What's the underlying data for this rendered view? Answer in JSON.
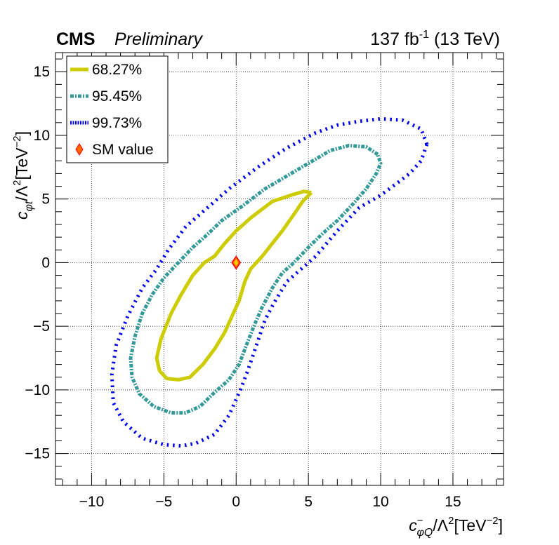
{
  "chart_data": {
    "type": "contour",
    "experiment": "CMS",
    "status": "Preliminary",
    "lumi_label": "137 fb",
    "lumi_sup": "-1",
    "energy_label": " (13 TeV)",
    "xlabel": {
      "main": "c",
      "sup": "−",
      "sub": "φQ",
      "rest": "/Λ",
      "sup2": "2",
      "unit": "[TeV",
      "unit_sup": "−2",
      "close": "]"
    },
    "ylabel": {
      "main": "c",
      "sub": "φt",
      "rest": "/Λ",
      "sup2": "2",
      "unit": "[TeV",
      "unit_sup": "−2",
      "close": "]"
    },
    "xlim": [
      -12.5,
      18.5
    ],
    "ylim": [
      -17.5,
      16.5
    ],
    "xticks": [
      -10,
      -5,
      0,
      5,
      10,
      15
    ],
    "yticks": [
      -15,
      -10,
      -5,
      0,
      5,
      10,
      15
    ],
    "xtick_labels": [
      "−10",
      "−5",
      "0",
      "5",
      "10",
      "15"
    ],
    "ytick_labels": [
      "−15",
      "−10",
      "−5",
      "0",
      "5",
      "10",
      "15"
    ],
    "grid": true,
    "legend_position": "top-left",
    "series": [
      {
        "name": "68.27%",
        "color": "#cccc00",
        "style": "solid",
        "points": [
          [
            5.2,
            5.5
          ],
          [
            4.7,
            5.6
          ],
          [
            3.8,
            5.3
          ],
          [
            2.5,
            4.8
          ],
          [
            1.8,
            4.2
          ],
          [
            1.0,
            3.5
          ],
          [
            0.0,
            2.5
          ],
          [
            -0.8,
            1.5
          ],
          [
            -1.5,
            0.5
          ],
          [
            -2.2,
            0.0
          ],
          [
            -3.0,
            -1.0
          ],
          [
            -3.8,
            -2.5
          ],
          [
            -4.5,
            -4.0
          ],
          [
            -5.2,
            -6.0
          ],
          [
            -5.5,
            -7.5
          ],
          [
            -5.3,
            -8.5
          ],
          [
            -4.8,
            -9.1
          ],
          [
            -4.0,
            -9.2
          ],
          [
            -3.2,
            -9.0
          ],
          [
            -2.3,
            -8.0
          ],
          [
            -1.5,
            -6.8
          ],
          [
            -0.8,
            -5.5
          ],
          [
            -0.2,
            -4.0
          ],
          [
            0.2,
            -3.0
          ],
          [
            0.6,
            -1.5
          ],
          [
            1.0,
            -0.5
          ],
          [
            1.8,
            0.5
          ],
          [
            2.5,
            1.5
          ],
          [
            3.2,
            2.5
          ],
          [
            4.0,
            3.8
          ],
          [
            4.6,
            4.8
          ],
          [
            5.2,
            5.5
          ]
        ]
      },
      {
        "name": "95.45%",
        "color": "#339999",
        "style": "dashed",
        "points": [
          [
            9.8,
            8.5
          ],
          [
            9.0,
            9.1
          ],
          [
            7.8,
            9.2
          ],
          [
            6.5,
            8.8
          ],
          [
            5.0,
            7.8
          ],
          [
            3.5,
            6.8
          ],
          [
            2.0,
            5.8
          ],
          [
            0.5,
            4.5
          ],
          [
            -1.0,
            3.3
          ],
          [
            -2.0,
            2.2
          ],
          [
            -3.0,
            1.2
          ],
          [
            -4.0,
            0.0
          ],
          [
            -5.0,
            -1.2
          ],
          [
            -5.8,
            -2.5
          ],
          [
            -6.5,
            -4.0
          ],
          [
            -7.0,
            -5.8
          ],
          [
            -7.3,
            -7.5
          ],
          [
            -7.2,
            -9.0
          ],
          [
            -6.7,
            -10.3
          ],
          [
            -5.7,
            -11.3
          ],
          [
            -4.5,
            -11.8
          ],
          [
            -3.5,
            -11.8
          ],
          [
            -2.5,
            -11.3
          ],
          [
            -1.5,
            -10.2
          ],
          [
            -0.5,
            -9.2
          ],
          [
            0.2,
            -8.0
          ],
          [
            0.7,
            -6.5
          ],
          [
            1.3,
            -4.8
          ],
          [
            1.8,
            -3.5
          ],
          [
            2.5,
            -2.0
          ],
          [
            3.2,
            -0.8
          ],
          [
            4.0,
            0.0
          ],
          [
            5.0,
            1.2
          ],
          [
            6.0,
            2.3
          ],
          [
            7.0,
            3.3
          ],
          [
            8.0,
            4.5
          ],
          [
            9.0,
            5.8
          ],
          [
            9.7,
            7.0
          ],
          [
            10.0,
            7.8
          ],
          [
            9.8,
            8.5
          ]
        ]
      },
      {
        "name": "99.73%",
        "color": "#0000ee",
        "style": "dotted",
        "points": [
          [
            13.2,
            9.3
          ],
          [
            12.8,
            10.5
          ],
          [
            11.5,
            11.2
          ],
          [
            10.0,
            11.3
          ],
          [
            8.5,
            11.1
          ],
          [
            7.0,
            10.8
          ],
          [
            5.5,
            10.2
          ],
          [
            3.5,
            9.0
          ],
          [
            1.5,
            7.5
          ],
          [
            -0.5,
            5.8
          ],
          [
            -2.0,
            4.3
          ],
          [
            -3.5,
            2.8
          ],
          [
            -4.7,
            1.0
          ],
          [
            -5.5,
            -0.5
          ],
          [
            -6.5,
            -2.0
          ],
          [
            -7.5,
            -4.2
          ],
          [
            -8.3,
            -6.5
          ],
          [
            -8.6,
            -8.8
          ],
          [
            -8.5,
            -11.0
          ],
          [
            -7.8,
            -12.5
          ],
          [
            -6.5,
            -13.8
          ],
          [
            -5.0,
            -14.3
          ],
          [
            -3.8,
            -14.4
          ],
          [
            -2.8,
            -14.2
          ],
          [
            -1.5,
            -13.5
          ],
          [
            -0.5,
            -12.0
          ],
          [
            0.3,
            -10.0
          ],
          [
            0.8,
            -8.5
          ],
          [
            1.4,
            -6.5
          ],
          [
            2.0,
            -4.5
          ],
          [
            2.6,
            -3.2
          ],
          [
            3.5,
            -1.5
          ],
          [
            4.5,
            -0.5
          ],
          [
            5.5,
            0.5
          ],
          [
            7.0,
            2.5
          ],
          [
            8.5,
            4.3
          ],
          [
            10.0,
            5.3
          ],
          [
            11.2,
            6.3
          ],
          [
            12.0,
            7.0
          ],
          [
            12.8,
            8.0
          ],
          [
            13.2,
            9.3
          ]
        ]
      }
    ],
    "markers": [
      {
        "name": "SM value",
        "x": 0,
        "y": 0,
        "fill": "#ff6600",
        "stroke": "#ff0000",
        "shape": "diamond"
      }
    ],
    "legend_entries": [
      "68.27%",
      "95.45%",
      "99.73%",
      "SM value"
    ]
  }
}
